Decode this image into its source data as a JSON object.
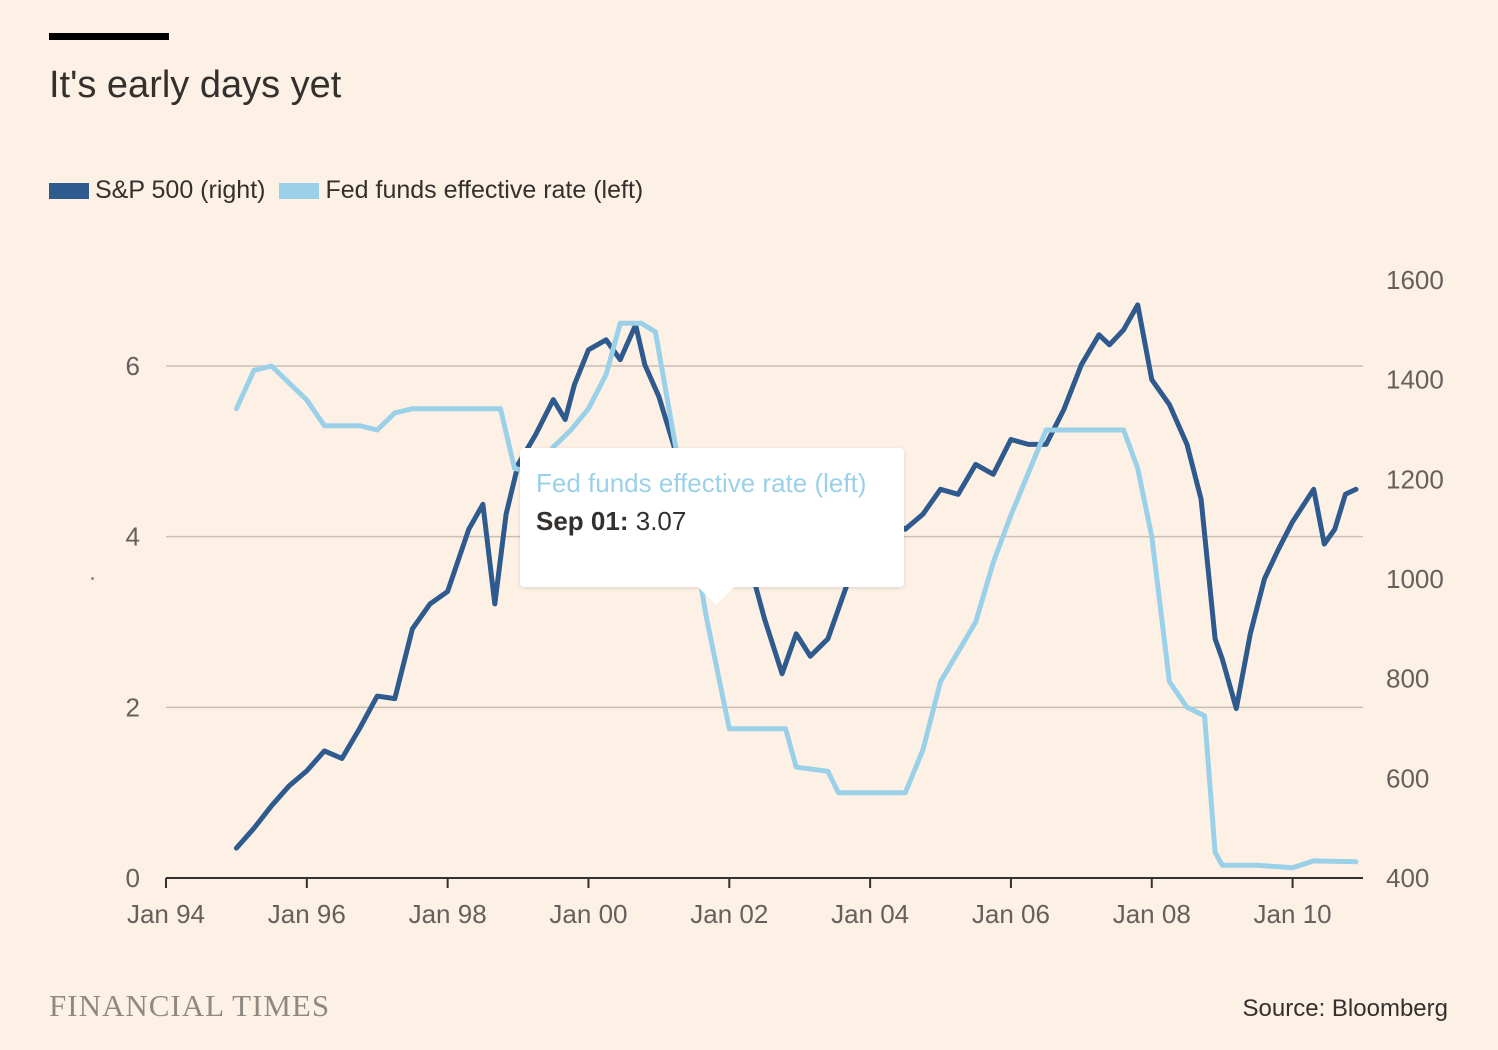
{
  "header": {
    "title": "It's early days yet"
  },
  "legend": [
    {
      "label": "S&P 500 (right)",
      "color": "#2e5a8e"
    },
    {
      "label": "Fed funds effective rate (left)",
      "color": "#9bd1e8"
    }
  ],
  "tooltip": {
    "series_label": "Fed funds effective rate (left)",
    "date": "Sep 01:",
    "value": "3.07"
  },
  "footer": {
    "brand": "FINANCIAL TIMES",
    "source": "Source: Bloomberg"
  },
  "chart_data": {
    "type": "line",
    "title": "It's early days yet",
    "x_axis": {
      "range": [
        1994.0,
        2011.0
      ],
      "ticks": [
        1994,
        1996,
        1998,
        2000,
        2002,
        2004,
        2006,
        2008,
        2010
      ],
      "tick_labels": [
        "Jan 94",
        "Jan 96",
        "Jan 98",
        "Jan 00",
        "Jan 02",
        "Jan 04",
        "Jan 06",
        "Jan 08",
        "Jan 10"
      ]
    },
    "y_left": {
      "range": [
        0,
        6
      ],
      "ticks": [
        0,
        2,
        4,
        6
      ],
      "tick_labels": [
        "0",
        "2",
        "4",
        "6"
      ]
    },
    "y_right": {
      "range": [
        400,
        1600
      ],
      "ticks": [
        400,
        600,
        800,
        1000,
        1200,
        1400,
        1600
      ],
      "tick_labels": [
        "400",
        "600",
        "800",
        "1000",
        "1200",
        "1400",
        "1600"
      ]
    },
    "grid": true,
    "series": [
      {
        "name": "S&P 500 (right)",
        "axis": "right",
        "color": "#2e5a8e",
        "points": [
          [
            1995.0,
            460
          ],
          [
            1995.25,
            500
          ],
          [
            1995.5,
            545
          ],
          [
            1995.75,
            585
          ],
          [
            1996.0,
            615
          ],
          [
            1996.25,
            655
          ],
          [
            1996.5,
            640
          ],
          [
            1996.75,
            700
          ],
          [
            1997.0,
            765
          ],
          [
            1997.25,
            760
          ],
          [
            1997.5,
            900
          ],
          [
            1997.75,
            950
          ],
          [
            1998.0,
            975
          ],
          [
            1998.3,
            1100
          ],
          [
            1998.5,
            1150
          ],
          [
            1998.67,
            950
          ],
          [
            1998.83,
            1130
          ],
          [
            1999.0,
            1230
          ],
          [
            1999.25,
            1290
          ],
          [
            1999.5,
            1360
          ],
          [
            1999.67,
            1320
          ],
          [
            1999.8,
            1390
          ],
          [
            2000.0,
            1460
          ],
          [
            2000.25,
            1480
          ],
          [
            2000.45,
            1440
          ],
          [
            2000.67,
            1510
          ],
          [
            2000.8,
            1430
          ],
          [
            2001.0,
            1366
          ],
          [
            2001.25,
            1250
          ],
          [
            2001.5,
            1200
          ],
          [
            2001.67,
            1100
          ],
          [
            2002.0,
            1140
          ],
          [
            2002.25,
            1050
          ],
          [
            2002.5,
            920
          ],
          [
            2002.75,
            810
          ],
          [
            2002.95,
            890
          ],
          [
            2003.15,
            845
          ],
          [
            2003.4,
            880
          ],
          [
            2003.7,
            1000
          ],
          [
            2004.0,
            1130
          ],
          [
            2004.25,
            1120
          ],
          [
            2004.5,
            1100
          ],
          [
            2004.75,
            1130
          ],
          [
            2005.0,
            1180
          ],
          [
            2005.25,
            1170
          ],
          [
            2005.5,
            1230
          ],
          [
            2005.75,
            1210
          ],
          [
            2006.0,
            1280
          ],
          [
            2006.25,
            1270
          ],
          [
            2006.5,
            1270
          ],
          [
            2006.75,
            1340
          ],
          [
            2007.0,
            1430
          ],
          [
            2007.25,
            1490
          ],
          [
            2007.4,
            1470
          ],
          [
            2007.6,
            1500
          ],
          [
            2007.8,
            1550
          ],
          [
            2008.0,
            1400
          ],
          [
            2008.25,
            1350
          ],
          [
            2008.5,
            1270
          ],
          [
            2008.7,
            1160
          ],
          [
            2008.9,
            880
          ],
          [
            2009.0,
            840
          ],
          [
            2009.2,
            740
          ],
          [
            2009.4,
            890
          ],
          [
            2009.6,
            1000
          ],
          [
            2009.8,
            1060
          ],
          [
            2010.0,
            1115
          ],
          [
            2010.3,
            1180
          ],
          [
            2010.45,
            1070
          ],
          [
            2010.6,
            1100
          ],
          [
            2010.75,
            1170
          ],
          [
            2010.9,
            1180
          ]
        ]
      },
      {
        "name": "Fed funds effective rate (left)",
        "axis": "left",
        "color": "#9bd1e8",
        "points": [
          [
            1995.0,
            5.5
          ],
          [
            1995.25,
            5.95
          ],
          [
            1995.5,
            6.0
          ],
          [
            1995.75,
            5.8
          ],
          [
            1996.0,
            5.6
          ],
          [
            1996.25,
            5.3
          ],
          [
            1996.5,
            5.3
          ],
          [
            1996.75,
            5.3
          ],
          [
            1997.0,
            5.25
          ],
          [
            1997.25,
            5.45
          ],
          [
            1997.5,
            5.5
          ],
          [
            1997.75,
            5.5
          ],
          [
            1998.0,
            5.5
          ],
          [
            1998.5,
            5.5
          ],
          [
            1998.75,
            5.5
          ],
          [
            1998.95,
            4.8
          ],
          [
            1999.25,
            4.75
          ],
          [
            1999.5,
            5.05
          ],
          [
            1999.75,
            5.25
          ],
          [
            2000.0,
            5.5
          ],
          [
            2000.25,
            5.9
          ],
          [
            2000.45,
            6.5
          ],
          [
            2000.75,
            6.5
          ],
          [
            2000.95,
            6.4
          ],
          [
            2001.25,
            5.0
          ],
          [
            2001.5,
            3.9
          ],
          [
            2001.67,
            3.07
          ],
          [
            2002.0,
            1.75
          ],
          [
            2002.5,
            1.75
          ],
          [
            2002.8,
            1.75
          ],
          [
            2002.95,
            1.3
          ],
          [
            2003.4,
            1.25
          ],
          [
            2003.55,
            1.0
          ],
          [
            2004.0,
            1.0
          ],
          [
            2004.5,
            1.0
          ],
          [
            2004.75,
            1.5
          ],
          [
            2005.0,
            2.3
          ],
          [
            2005.5,
            3.0
          ],
          [
            2005.75,
            3.7
          ],
          [
            2006.0,
            4.25
          ],
          [
            2006.5,
            5.25
          ],
          [
            2007.0,
            5.25
          ],
          [
            2007.6,
            5.25
          ],
          [
            2007.8,
            4.8
          ],
          [
            2008.0,
            4.0
          ],
          [
            2008.25,
            2.3
          ],
          [
            2008.5,
            2.0
          ],
          [
            2008.75,
            1.9
          ],
          [
            2008.9,
            0.3
          ],
          [
            2009.0,
            0.15
          ],
          [
            2009.5,
            0.15
          ],
          [
            2010.0,
            0.12
          ],
          [
            2010.3,
            0.2
          ],
          [
            2010.9,
            0.19
          ]
        ]
      }
    ]
  }
}
